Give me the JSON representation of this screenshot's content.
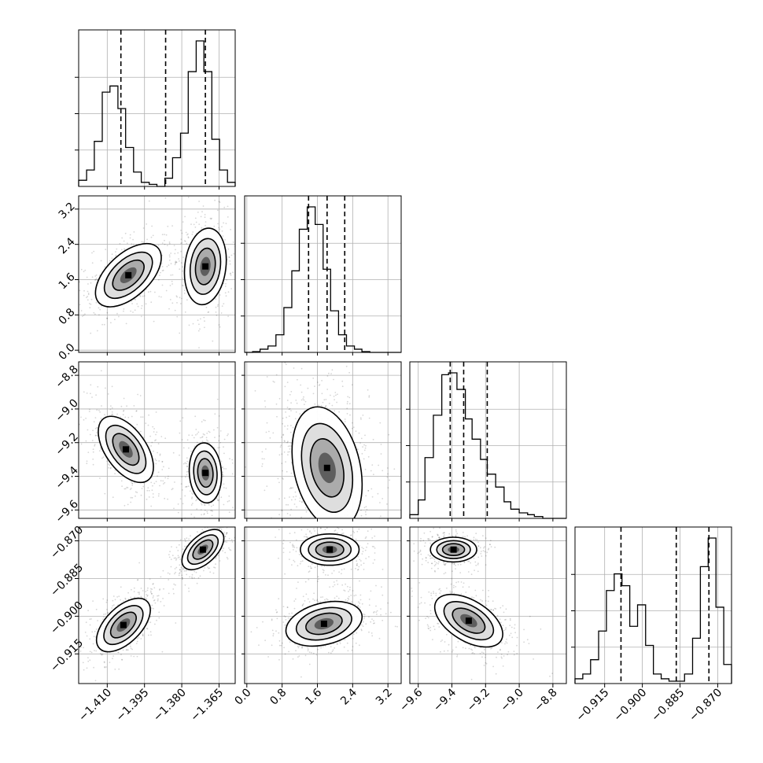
{
  "chart_data": {
    "type": "corner",
    "grid": true,
    "parameters": [
      {
        "index": 0,
        "range": [
          -1.4215,
          -1.3585
        ],
        "ticks": [
          {
            "value": -1.41,
            "label": "−1.410"
          },
          {
            "value": -1.395,
            "label": "−1.395"
          },
          {
            "value": -1.38,
            "label": "−1.380"
          },
          {
            "value": -1.365,
            "label": "−1.365"
          }
        ],
        "quantiles": [
          -1.4045,
          -1.3865,
          -1.3705
        ],
        "histogram": {
          "edges": [
            -1.4215,
            -1.4183,
            -1.4152,
            -1.412,
            -1.4089,
            -1.4057,
            -1.4026,
            -1.3994,
            -1.3963,
            -1.3931,
            -1.39,
            -1.3868,
            -1.3837,
            -1.3805,
            -1.3774,
            -1.3742,
            -1.3711,
            -1.3679,
            -1.3648,
            -1.3616,
            -1.3585
          ],
          "counts": [
            0.03,
            0.08,
            0.22,
            0.46,
            0.49,
            0.38,
            0.19,
            0.07,
            0.02,
            0.01,
            0.0,
            0.04,
            0.14,
            0.26,
            0.56,
            0.71,
            0.56,
            0.23,
            0.08,
            0.02
          ]
        }
      },
      {
        "index": 1,
        "range": [
          -0.05,
          3.5
        ],
        "ticks": [
          {
            "value": 0.0,
            "label": "0.0"
          },
          {
            "value": 0.8,
            "label": "0.8"
          },
          {
            "value": 1.6,
            "label": "1.6"
          },
          {
            "value": 2.4,
            "label": "2.4"
          },
          {
            "value": 3.2,
            "label": "3.2"
          }
        ],
        "quantiles": [
          1.4,
          1.82,
          2.22
        ],
        "histogram": {
          "edges": [
            -0.05,
            0.13,
            0.3,
            0.48,
            0.66,
            0.84,
            1.02,
            1.19,
            1.37,
            1.55,
            1.73,
            1.9,
            2.08,
            2.26,
            2.44,
            2.61,
            2.79,
            2.97,
            3.15,
            3.32,
            3.5
          ],
          "counts": [
            0.0,
            0.005,
            0.02,
            0.04,
            0.11,
            0.28,
            0.51,
            0.77,
            0.91,
            0.8,
            0.52,
            0.26,
            0.11,
            0.04,
            0.02,
            0.005,
            0.0,
            0.0,
            0.0,
            0.0
          ]
        }
      },
      {
        "index": 2,
        "range": [
          -9.65,
          -8.72
        ],
        "ticks": [
          {
            "value": -9.6,
            "label": "−9.6"
          },
          {
            "value": -9.4,
            "label": "−9.4"
          },
          {
            "value": -9.2,
            "label": "−9.2"
          },
          {
            "value": -9.0,
            "label": "−9.0"
          },
          {
            "value": -8.8,
            "label": "−8.8"
          }
        ],
        "quantiles": [
          -9.41,
          -9.33,
          -9.19
        ],
        "histogram": {
          "edges": [
            -9.65,
            -9.6,
            -9.56,
            -9.51,
            -9.46,
            -9.42,
            -9.37,
            -9.32,
            -9.28,
            -9.23,
            -9.19,
            -9.14,
            -9.09,
            -9.05,
            -9.0,
            -8.95,
            -8.91,
            -8.86,
            -8.81,
            -8.77,
            -8.72
          ],
          "counts": [
            0.02,
            0.1,
            0.33,
            0.56,
            0.78,
            0.79,
            0.7,
            0.54,
            0.43,
            0.32,
            0.24,
            0.17,
            0.09,
            0.05,
            0.03,
            0.02,
            0.01,
            0.0,
            0.0,
            0.0
          ]
        }
      },
      {
        "index": 3,
        "range": [
          -0.9268,
          -0.8645
        ],
        "ticks": [
          {
            "value": -0.915,
            "label": "−0.915"
          },
          {
            "value": -0.9,
            "label": "−0.900"
          },
          {
            "value": -0.885,
            "label": "−0.885"
          },
          {
            "value": -0.87,
            "label": "−0.870"
          }
        ],
        "quantiles": [
          -0.9085,
          -0.8865,
          -0.8735
        ],
        "histogram": {
          "edges": [
            -0.9268,
            -0.9237,
            -0.9206,
            -0.9174,
            -0.9143,
            -0.9112,
            -0.9081,
            -0.905,
            -0.9019,
            -0.8987,
            -0.8956,
            -0.8925,
            -0.8894,
            -0.8863,
            -0.8832,
            -0.88,
            -0.8769,
            -0.8738,
            -0.8707,
            -0.8676,
            -0.8645
          ],
          "counts": [
            0.02,
            0.04,
            0.1,
            0.22,
            0.39,
            0.46,
            0.41,
            0.24,
            0.33,
            0.16,
            0.04,
            0.02,
            0.01,
            0.01,
            0.04,
            0.19,
            0.49,
            0.61,
            0.32,
            0.08
          ]
        }
      }
    ],
    "pairs": [
      {
        "x": 0,
        "y": 1,
        "blobs": [
          {
            "mean": [
              -1.4015,
              1.7
            ],
            "std": [
              0.0042,
              0.4
            ],
            "angle": 0.75,
            "weight": 0.55
          },
          {
            "mean": [
              -1.3705,
              1.9
            ],
            "std": [
              0.0034,
              0.45
            ],
            "angle": 1.45,
            "weight": 0.45
          }
        ]
      },
      {
        "x": 0,
        "y": 2,
        "blobs": [
          {
            "mean": [
              -1.4025,
              -9.24
            ],
            "std": [
              0.0046,
              0.085
            ],
            "angle": -0.95,
            "weight": 0.55
          },
          {
            "mean": [
              -1.3705,
              -9.38
            ],
            "std": [
              0.0035,
              0.07
            ],
            "angle": -1.5,
            "weight": 0.45
          }
        ]
      },
      {
        "x": 0,
        "y": 3,
        "blobs": [
          {
            "mean": [
              -1.4035,
              -0.9035
            ],
            "std": [
              0.0045,
              0.0045
            ],
            "angle": 0.78,
            "weight": 0.55
          },
          {
            "mean": [
              -1.3715,
              -0.8735
            ],
            "std": [
              0.0035,
              0.0034
            ],
            "angle": 0.75,
            "weight": 0.45
          }
        ]
      },
      {
        "x": 1,
        "y": 2,
        "blobs": [
          {
            "mean": [
              1.82,
              -9.35
            ],
            "std": [
              0.42,
              0.14
            ],
            "angle": -1.35,
            "weight": 1.0
          }
        ]
      },
      {
        "x": 1,
        "y": 3,
        "blobs": [
          {
            "mean": [
              1.75,
              -0.903
            ],
            "std": [
              0.42,
              0.0037
            ],
            "angle": 0.25,
            "weight": 0.55
          },
          {
            "mean": [
              1.88,
              -0.8735
            ],
            "std": [
              0.4,
              0.0022
            ],
            "angle": 0.0,
            "weight": 0.45
          }
        ]
      },
      {
        "x": 2,
        "y": 3,
        "blobs": [
          {
            "mean": [
              -9.3,
              -0.9018
            ],
            "std": [
              0.11,
              0.0035
            ],
            "angle": -0.55,
            "weight": 0.55
          },
          {
            "mean": [
              -9.39,
              -0.8735
            ],
            "std": [
              0.065,
              0.0022
            ],
            "angle": 0.0,
            "weight": 0.45
          }
        ]
      }
    ]
  }
}
